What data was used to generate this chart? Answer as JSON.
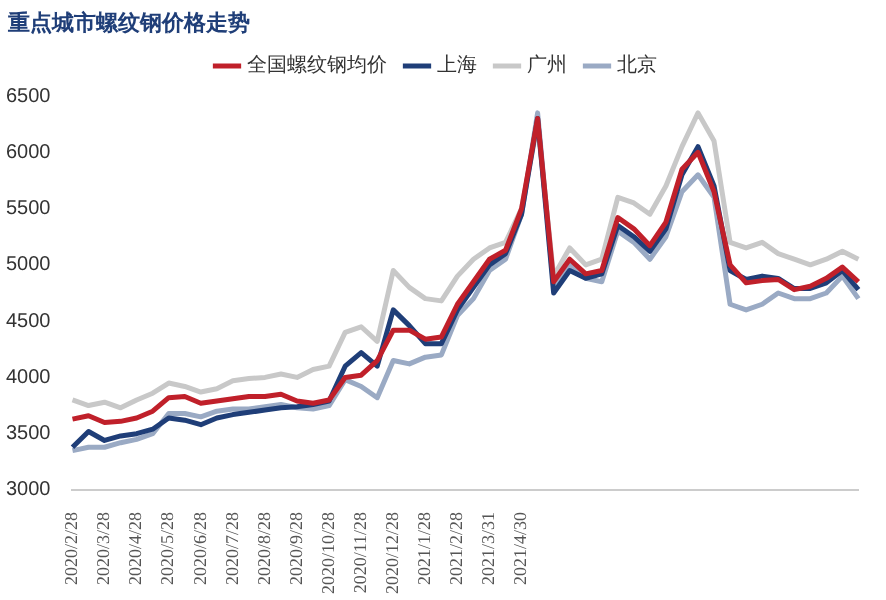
{
  "chart_data": {
    "type": "line",
    "title": "重点城市螺纹钢价格走势",
    "categories": [
      "2020/2/28",
      null,
      "2020/3/28",
      null,
      "2020/4/28",
      null,
      "2020/5/28",
      null,
      "2020/6/28",
      null,
      "2020/7/28",
      null,
      "2020/8/28",
      null,
      "2020/9/28",
      null,
      "2020/10/28",
      null,
      "2020/11/28",
      null,
      "2020/12/28",
      null,
      "2021/1/28",
      null,
      "2021/2/28",
      null,
      "2021/3/31",
      null,
      "2021/4/30",
      null,
      null,
      null,
      null,
      null,
      null,
      null,
      null,
      null,
      null,
      null,
      null,
      null,
      null,
      null,
      null,
      null,
      null,
      null,
      null,
      null
    ],
    "series": [
      {
        "name": "全国螺纹钢均价",
        "color": "#c0202a",
        "values": [
          3630,
          3660,
          3600,
          3610,
          3640,
          3700,
          3820,
          3830,
          3770,
          3790,
          3810,
          3830,
          3830,
          3850,
          3790,
          3770,
          3800,
          4000,
          4020,
          4150,
          4420,
          4420,
          4340,
          4360,
          4650,
          4850,
          5050,
          5130,
          5500,
          6300,
          4850,
          5050,
          4920,
          4950,
          5420,
          5320,
          5170,
          5380,
          5850,
          6000,
          5650,
          5000,
          4840,
          4860,
          4870,
          4780,
          4810,
          4880,
          4980,
          4850
        ]
      },
      {
        "name": "上海",
        "color": "#1f3e78",
        "values": [
          3380,
          3520,
          3440,
          3480,
          3500,
          3540,
          3640,
          3620,
          3580,
          3640,
          3670,
          3690,
          3710,
          3730,
          3740,
          3760,
          3790,
          4100,
          4220,
          4100,
          4600,
          4460,
          4300,
          4300,
          4600,
          4800,
          5000,
          5100,
          5450,
          6300,
          4750,
          4950,
          4880,
          4920,
          5350,
          5250,
          5120,
          5320,
          5800,
          6050,
          5700,
          4950,
          4870,
          4900,
          4880,
          4790,
          4790,
          4840,
          4950,
          4780
        ]
      },
      {
        "name": "广州",
        "color": "#c8c8c8",
        "values": [
          3800,
          3750,
          3780,
          3730,
          3800,
          3860,
          3950,
          3920,
          3870,
          3900,
          3970,
          3990,
          4000,
          4030,
          4000,
          4070,
          4100,
          4400,
          4450,
          4320,
          4950,
          4800,
          4700,
          4680,
          4900,
          5050,
          5150,
          5200,
          5500,
          6250,
          4900,
          5150,
          5000,
          5050,
          5600,
          5550,
          5450,
          5700,
          6050,
          6350,
          6100,
          5200,
          5150,
          5200,
          5100,
          5050,
          5000,
          5050,
          5120,
          5050
        ]
      },
      {
        "name": "北京",
        "color": "#9aaac4",
        "values": [
          3350,
          3380,
          3380,
          3420,
          3450,
          3500,
          3680,
          3680,
          3650,
          3700,
          3720,
          3720,
          3740,
          3760,
          3730,
          3720,
          3750,
          3980,
          3920,
          3820,
          4150,
          4120,
          4180,
          4200,
          4550,
          4700,
          4950,
          5050,
          5450,
          6350,
          4800,
          5000,
          4880,
          4850,
          5300,
          5200,
          5050,
          5250,
          5650,
          5800,
          5600,
          4650,
          4600,
          4650,
          4750,
          4700,
          4700,
          4750,
          4900,
          4700
        ]
      }
    ],
    "ylim": [
      3000,
      6500
    ],
    "yticks": [
      3000,
      3500,
      4000,
      4500,
      5000,
      5500,
      6000,
      6500
    ],
    "legend": "top",
    "marker": "none",
    "line_style": "solid"
  }
}
